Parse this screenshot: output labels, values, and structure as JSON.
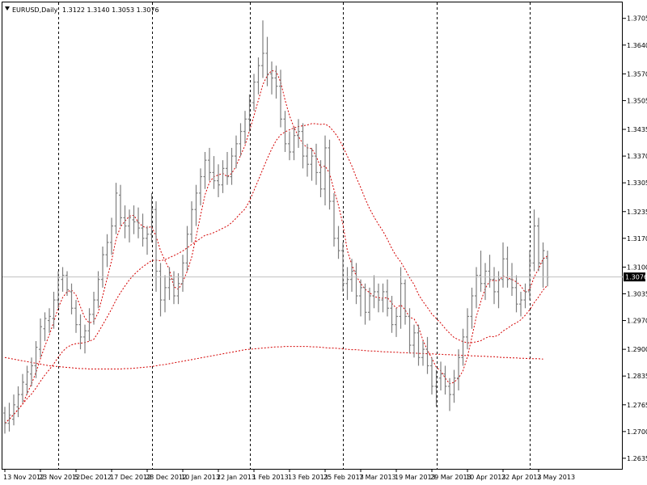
{
  "header": {
    "symbol_label": "EURUSD,Daily",
    "ohlc_text": "1.3122 1.3140 1.3053 1.3076"
  },
  "colors": {
    "background": "#ffffff",
    "bars": "#7f7f7f",
    "moving_average": "#d40000",
    "grid": "#000000",
    "current_price_box": "#000000",
    "current_price_text": "#ffffff"
  },
  "chart_data": {
    "type": "ohlc",
    "symbol": "EURUSD",
    "timeframe": "Daily",
    "last_ohlc": {
      "open": 1.3122,
      "high": 1.314,
      "low": 1.3053,
      "close": 1.3076
    },
    "current_price": "1.3076",
    "y_ticks": [
      "1.3705",
      "1.3640",
      "1.3570",
      "1.3505",
      "1.3435",
      "1.3370",
      "1.3305",
      "1.3235",
      "1.3170",
      "1.3100",
      "1.3035",
      "1.2970",
      "1.2900",
      "1.2835",
      "1.2765",
      "1.2700",
      "1.2635"
    ],
    "x_ticks": [
      "13 Nov 2012",
      "23 Nov 2012",
      "5 Dec 2012",
      "17 Dec 2012",
      "28 Dec 2012",
      "10 Jan 2013",
      "22 Jan 2013",
      "1 Feb 2013",
      "13 Feb 2013",
      "25 Feb 2013",
      "7 Mar 2013",
      "19 Mar 2013",
      "29 Mar 2013",
      "10 Apr 2013",
      "22 Apr 2013",
      "2 May 2013"
    ],
    "x_tick_bars": [
      0,
      8,
      16,
      24,
      32,
      40,
      48,
      56,
      64,
      72,
      80,
      88,
      96,
      104,
      112,
      120
    ],
    "vertical_separator_bars": [
      12,
      33,
      55,
      76,
      97,
      118
    ],
    "ylim": [
      1.2625,
      1.373
    ],
    "grid": "vertical dashed separators",
    "bars": [
      {
        "o": 1.2745,
        "h": 1.276,
        "l": 1.2695,
        "c": 1.272
      },
      {
        "o": 1.272,
        "h": 1.277,
        "l": 1.27,
        "c": 1.274
      },
      {
        "o": 1.273,
        "h": 1.279,
        "l": 1.2715,
        "c": 1.2765
      },
      {
        "o": 1.276,
        "h": 1.281,
        "l": 1.2735,
        "c": 1.279
      },
      {
        "o": 1.279,
        "h": 1.284,
        "l": 1.277,
        "c": 1.282
      },
      {
        "o": 1.2815,
        "h": 1.286,
        "l": 1.279,
        "c": 1.2845
      },
      {
        "o": 1.284,
        "h": 1.288,
        "l": 1.281,
        "c": 1.286
      },
      {
        "o": 1.286,
        "h": 1.292,
        "l": 1.283,
        "c": 1.2905
      },
      {
        "o": 1.29,
        "h": 1.2975,
        "l": 1.288,
        "c": 1.2955
      },
      {
        "o": 1.295,
        "h": 1.299,
        "l": 1.292,
        "c": 1.2975
      },
      {
        "o": 1.297,
        "h": 1.3,
        "l": 1.294,
        "c": 1.298
      },
      {
        "o": 1.2975,
        "h": 1.304,
        "l": 1.295,
        "c": 1.302
      },
      {
        "o": 1.302,
        "h": 1.309,
        "l": 1.3,
        "c": 1.3075
      },
      {
        "o": 1.307,
        "h": 1.31,
        "l": 1.304,
        "c": 1.308
      },
      {
        "o": 1.308,
        "h": 1.309,
        "l": 1.303,
        "c": 1.3045
      },
      {
        "o": 1.304,
        "h": 1.306,
        "l": 1.2985,
        "c": 1.3
      },
      {
        "o": 1.3,
        "h": 1.302,
        "l": 1.294,
        "c": 1.296
      },
      {
        "o": 1.296,
        "h": 1.2985,
        "l": 1.29,
        "c": 1.293
      },
      {
        "o": 1.293,
        "h": 1.296,
        "l": 1.289,
        "c": 1.2945
      },
      {
        "o": 1.2945,
        "h": 1.3,
        "l": 1.292,
        "c": 1.2985
      },
      {
        "o": 1.2985,
        "h": 1.304,
        "l": 1.296,
        "c": 1.302
      },
      {
        "o": 1.302,
        "h": 1.309,
        "l": 1.3,
        "c": 1.307
      },
      {
        "o": 1.307,
        "h": 1.315,
        "l": 1.305,
        "c": 1.313
      },
      {
        "o": 1.313,
        "h": 1.318,
        "l": 1.31,
        "c": 1.316
      },
      {
        "o": 1.316,
        "h": 1.322,
        "l": 1.313,
        "c": 1.32
      },
      {
        "o": 1.32,
        "h": 1.3305,
        "l": 1.318,
        "c": 1.328
      },
      {
        "o": 1.3275,
        "h": 1.33,
        "l": 1.32,
        "c": 1.322
      },
      {
        "o": 1.322,
        "h": 1.325,
        "l": 1.317,
        "c": 1.32
      },
      {
        "o": 1.32,
        "h": 1.324,
        "l": 1.316,
        "c": 1.322
      },
      {
        "o": 1.3215,
        "h": 1.325,
        "l": 1.318,
        "c": 1.321
      },
      {
        "o": 1.321,
        "h": 1.3245,
        "l": 1.317,
        "c": 1.3195
      },
      {
        "o": 1.3195,
        "h": 1.323,
        "l": 1.315,
        "c": 1.317
      },
      {
        "o": 1.317,
        "h": 1.32,
        "l": 1.313,
        "c": 1.318
      },
      {
        "o": 1.318,
        "h": 1.328,
        "l": 1.316,
        "c": 1.324
      },
      {
        "o": 1.324,
        "h": 1.326,
        "l": 1.304,
        "c": 1.309
      },
      {
        "o": 1.309,
        "h": 1.311,
        "l": 1.298,
        "c": 1.302
      },
      {
        "o": 1.302,
        "h": 1.308,
        "l": 1.299,
        "c": 1.305
      },
      {
        "o": 1.305,
        "h": 1.31,
        "l": 1.302,
        "c": 1.307
      },
      {
        "o": 1.307,
        "h": 1.309,
        "l": 1.301,
        "c": 1.303
      },
      {
        "o": 1.303,
        "h": 1.3085,
        "l": 1.301,
        "c": 1.306
      },
      {
        "o": 1.306,
        "h": 1.313,
        "l": 1.304,
        "c": 1.311
      },
      {
        "o": 1.311,
        "h": 1.32,
        "l": 1.309,
        "c": 1.318
      },
      {
        "o": 1.318,
        "h": 1.326,
        "l": 1.316,
        "c": 1.324
      },
      {
        "o": 1.324,
        "h": 1.33,
        "l": 1.32,
        "c": 1.328
      },
      {
        "o": 1.328,
        "h": 1.334,
        "l": 1.325,
        "c": 1.332
      },
      {
        "o": 1.332,
        "h": 1.338,
        "l": 1.329,
        "c": 1.336
      },
      {
        "o": 1.336,
        "h": 1.339,
        "l": 1.331,
        "c": 1.333
      },
      {
        "o": 1.333,
        "h": 1.337,
        "l": 1.329,
        "c": 1.331
      },
      {
        "o": 1.331,
        "h": 1.335,
        "l": 1.327,
        "c": 1.33
      },
      {
        "o": 1.33,
        "h": 1.336,
        "l": 1.328,
        "c": 1.334
      },
      {
        "o": 1.334,
        "h": 1.338,
        "l": 1.33,
        "c": 1.332
      },
      {
        "o": 1.332,
        "h": 1.339,
        "l": 1.33,
        "c": 1.337
      },
      {
        "o": 1.337,
        "h": 1.342,
        "l": 1.334,
        "c": 1.34
      },
      {
        "o": 1.34,
        "h": 1.345,
        "l": 1.337,
        "c": 1.343
      },
      {
        "o": 1.343,
        "h": 1.348,
        "l": 1.34,
        "c": 1.346
      },
      {
        "o": 1.346,
        "h": 1.352,
        "l": 1.343,
        "c": 1.35
      },
      {
        "o": 1.35,
        "h": 1.357,
        "l": 1.348,
        "c": 1.355
      },
      {
        "o": 1.355,
        "h": 1.361,
        "l": 1.352,
        "c": 1.359
      },
      {
        "o": 1.359,
        "h": 1.37,
        "l": 1.356,
        "c": 1.362
      },
      {
        "o": 1.362,
        "h": 1.366,
        "l": 1.354,
        "c": 1.357
      },
      {
        "o": 1.357,
        "h": 1.36,
        "l": 1.352,
        "c": 1.356
      },
      {
        "o": 1.356,
        "h": 1.359,
        "l": 1.351,
        "c": 1.354
      },
      {
        "o": 1.354,
        "h": 1.358,
        "l": 1.344,
        "c": 1.346
      },
      {
        "o": 1.346,
        "h": 1.348,
        "l": 1.338,
        "c": 1.34
      },
      {
        "o": 1.34,
        "h": 1.343,
        "l": 1.336,
        "c": 1.338
      },
      {
        "o": 1.338,
        "h": 1.344,
        "l": 1.336,
        "c": 1.342
      },
      {
        "o": 1.342,
        "h": 1.346,
        "l": 1.339,
        "c": 1.343
      },
      {
        "o": 1.343,
        "h": 1.345,
        "l": 1.334,
        "c": 1.337
      },
      {
        "o": 1.337,
        "h": 1.34,
        "l": 1.332,
        "c": 1.335
      },
      {
        "o": 1.335,
        "h": 1.339,
        "l": 1.331,
        "c": 1.337
      },
      {
        "o": 1.337,
        "h": 1.34,
        "l": 1.33,
        "c": 1.333
      },
      {
        "o": 1.333,
        "h": 1.336,
        "l": 1.327,
        "c": 1.329
      },
      {
        "o": 1.329,
        "h": 1.342,
        "l": 1.325,
        "c": 1.339
      },
      {
        "o": 1.339,
        "h": 1.341,
        "l": 1.324,
        "c": 1.326
      },
      {
        "o": 1.326,
        "h": 1.328,
        "l": 1.315,
        "c": 1.317
      },
      {
        "o": 1.317,
        "h": 1.32,
        "l": 1.312,
        "c": 1.314
      },
      {
        "o": 1.314,
        "h": 1.316,
        "l": 1.304,
        "c": 1.306
      },
      {
        "o": 1.306,
        "h": 1.31,
        "l": 1.302,
        "c": 1.307
      },
      {
        "o": 1.307,
        "h": 1.312,
        "l": 1.304,
        "c": 1.309
      },
      {
        "o": 1.309,
        "h": 1.311,
        "l": 1.301,
        "c": 1.303
      },
      {
        "o": 1.303,
        "h": 1.307,
        "l": 1.298,
        "c": 1.305
      },
      {
        "o": 1.305,
        "h": 1.306,
        "l": 1.296,
        "c": 1.299
      },
      {
        "o": 1.299,
        "h": 1.305,
        "l": 1.297,
        "c": 1.303
      },
      {
        "o": 1.303,
        "h": 1.308,
        "l": 1.3,
        "c": 1.304
      },
      {
        "o": 1.304,
        "h": 1.306,
        "l": 1.299,
        "c": 1.302
      },
      {
        "o": 1.302,
        "h": 1.306,
        "l": 1.299,
        "c": 1.304
      },
      {
        "o": 1.304,
        "h": 1.307,
        "l": 1.298,
        "c": 1.3
      },
      {
        "o": 1.3,
        "h": 1.303,
        "l": 1.294,
        "c": 1.296
      },
      {
        "o": 1.296,
        "h": 1.3,
        "l": 1.293,
        "c": 1.298
      },
      {
        "o": 1.298,
        "h": 1.31,
        "l": 1.295,
        "c": 1.306
      },
      {
        "o": 1.306,
        "h": 1.307,
        "l": 1.296,
        "c": 1.298
      },
      {
        "o": 1.298,
        "h": 1.3,
        "l": 1.289,
        "c": 1.291
      },
      {
        "o": 1.291,
        "h": 1.296,
        "l": 1.288,
        "c": 1.294
      },
      {
        "o": 1.294,
        "h": 1.296,
        "l": 1.286,
        "c": 1.288
      },
      {
        "o": 1.288,
        "h": 1.292,
        "l": 1.286,
        "c": 1.29
      },
      {
        "o": 1.29,
        "h": 1.293,
        "l": 1.284,
        "c": 1.286
      },
      {
        "o": 1.286,
        "h": 1.288,
        "l": 1.279,
        "c": 1.281
      },
      {
        "o": 1.281,
        "h": 1.285,
        "l": 1.276,
        "c": 1.283
      },
      {
        "o": 1.283,
        "h": 1.287,
        "l": 1.28,
        "c": 1.284
      },
      {
        "o": 1.284,
        "h": 1.286,
        "l": 1.279,
        "c": 1.281
      },
      {
        "o": 1.281,
        "h": 1.283,
        "l": 1.275,
        "c": 1.279
      },
      {
        "o": 1.279,
        "h": 1.285,
        "l": 1.277,
        "c": 1.283
      },
      {
        "o": 1.283,
        "h": 1.29,
        "l": 1.28,
        "c": 1.288
      },
      {
        "o": 1.288,
        "h": 1.295,
        "l": 1.286,
        "c": 1.293
      },
      {
        "o": 1.293,
        "h": 1.3,
        "l": 1.29,
        "c": 1.298
      },
      {
        "o": 1.298,
        "h": 1.305,
        "l": 1.295,
        "c": 1.303
      },
      {
        "o": 1.303,
        "h": 1.31,
        "l": 1.3,
        "c": 1.308
      },
      {
        "o": 1.308,
        "h": 1.314,
        "l": 1.304,
        "c": 1.306
      },
      {
        "o": 1.306,
        "h": 1.311,
        "l": 1.302,
        "c": 1.309
      },
      {
        "o": 1.309,
        "h": 1.313,
        "l": 1.305,
        "c": 1.307
      },
      {
        "o": 1.307,
        "h": 1.31,
        "l": 1.301,
        "c": 1.304
      },
      {
        "o": 1.304,
        "h": 1.309,
        "l": 1.3,
        "c": 1.307
      },
      {
        "o": 1.307,
        "h": 1.316,
        "l": 1.305,
        "c": 1.312
      },
      {
        "o": 1.312,
        "h": 1.315,
        "l": 1.305,
        "c": 1.307
      },
      {
        "o": 1.307,
        "h": 1.311,
        "l": 1.303,
        "c": 1.305
      },
      {
        "o": 1.305,
        "h": 1.308,
        "l": 1.299,
        "c": 1.301
      },
      {
        "o": 1.301,
        "h": 1.304,
        "l": 1.298,
        "c": 1.302
      },
      {
        "o": 1.302,
        "h": 1.306,
        "l": 1.3,
        "c": 1.304
      },
      {
        "o": 1.304,
        "h": 1.314,
        "l": 1.302,
        "c": 1.311
      },
      {
        "o": 1.311,
        "h": 1.324,
        "l": 1.309,
        "c": 1.32
      },
      {
        "o": 1.32,
        "h": 1.322,
        "l": 1.309,
        "c": 1.311
      },
      {
        "o": 1.311,
        "h": 1.316,
        "l": 1.305,
        "c": 1.314
      },
      {
        "o": 1.3122,
        "h": 1.314,
        "l": 1.3053,
        "c": 1.3076
      }
    ],
    "moving_averages": [
      {
        "period": 5,
        "style": "dotted"
      },
      {
        "period": 21,
        "style": "dotted"
      },
      {
        "period": 89,
        "style": "dotted",
        "seed": [
          1.288,
          1.2878,
          1.2876,
          1.2874,
          1.2872,
          1.287,
          1.2868,
          1.2866,
          1.2864,
          1.2862,
          1.286,
          1.2859,
          1.2858,
          1.2857,
          1.2856,
          1.2855,
          1.2854,
          1.2853,
          1.2853,
          1.2852,
          1.2852,
          1.2852,
          1.2852,
          1.2852,
          1.2852,
          1.2852,
          1.2852,
          1.2853,
          1.2853,
          1.2854,
          1.2855,
          1.2856,
          1.2857,
          1.2858,
          1.286,
          1.2862,
          1.2863,
          1.2865,
          1.2867,
          1.2869,
          1.2871,
          1.2873,
          1.2875,
          1.2877,
          1.2879,
          1.2881,
          1.2883,
          1.2885,
          1.2887,
          1.2889,
          1.2891,
          1.2893,
          1.2895,
          1.2897,
          1.2899,
          1.29,
          1.2901,
          1.2902,
          1.2903,
          1.2904,
          1.2905,
          1.2906,
          1.2906,
          1.2907,
          1.2907,
          1.2907,
          1.2907,
          1.2907,
          1.2907,
          1.2906,
          1.2906,
          1.2905,
          1.2904,
          1.2903,
          1.2903,
          1.2902,
          1.2901,
          1.29,
          1.2899,
          1.2899,
          1.2898,
          1.2897,
          1.2896,
          1.2896,
          1.2895,
          1.2894,
          1.2894,
          1.2893,
          1.2893,
          1.2892,
          1.2892,
          1.2891,
          1.2891,
          1.289,
          1.289,
          1.2889,
          1.2889,
          1.2888,
          1.2888,
          1.2887,
          1.2887,
          1.2886,
          1.2886,
          1.2885,
          1.2885,
          1.2884,
          1.2884,
          1.2883,
          1.2883,
          1.2882,
          1.2882,
          1.2881,
          1.288,
          1.288,
          1.2879,
          1.2879,
          1.2878,
          1.2878,
          1.2877,
          1.2877,
          1.2877,
          1.2876
        ]
      }
    ]
  }
}
